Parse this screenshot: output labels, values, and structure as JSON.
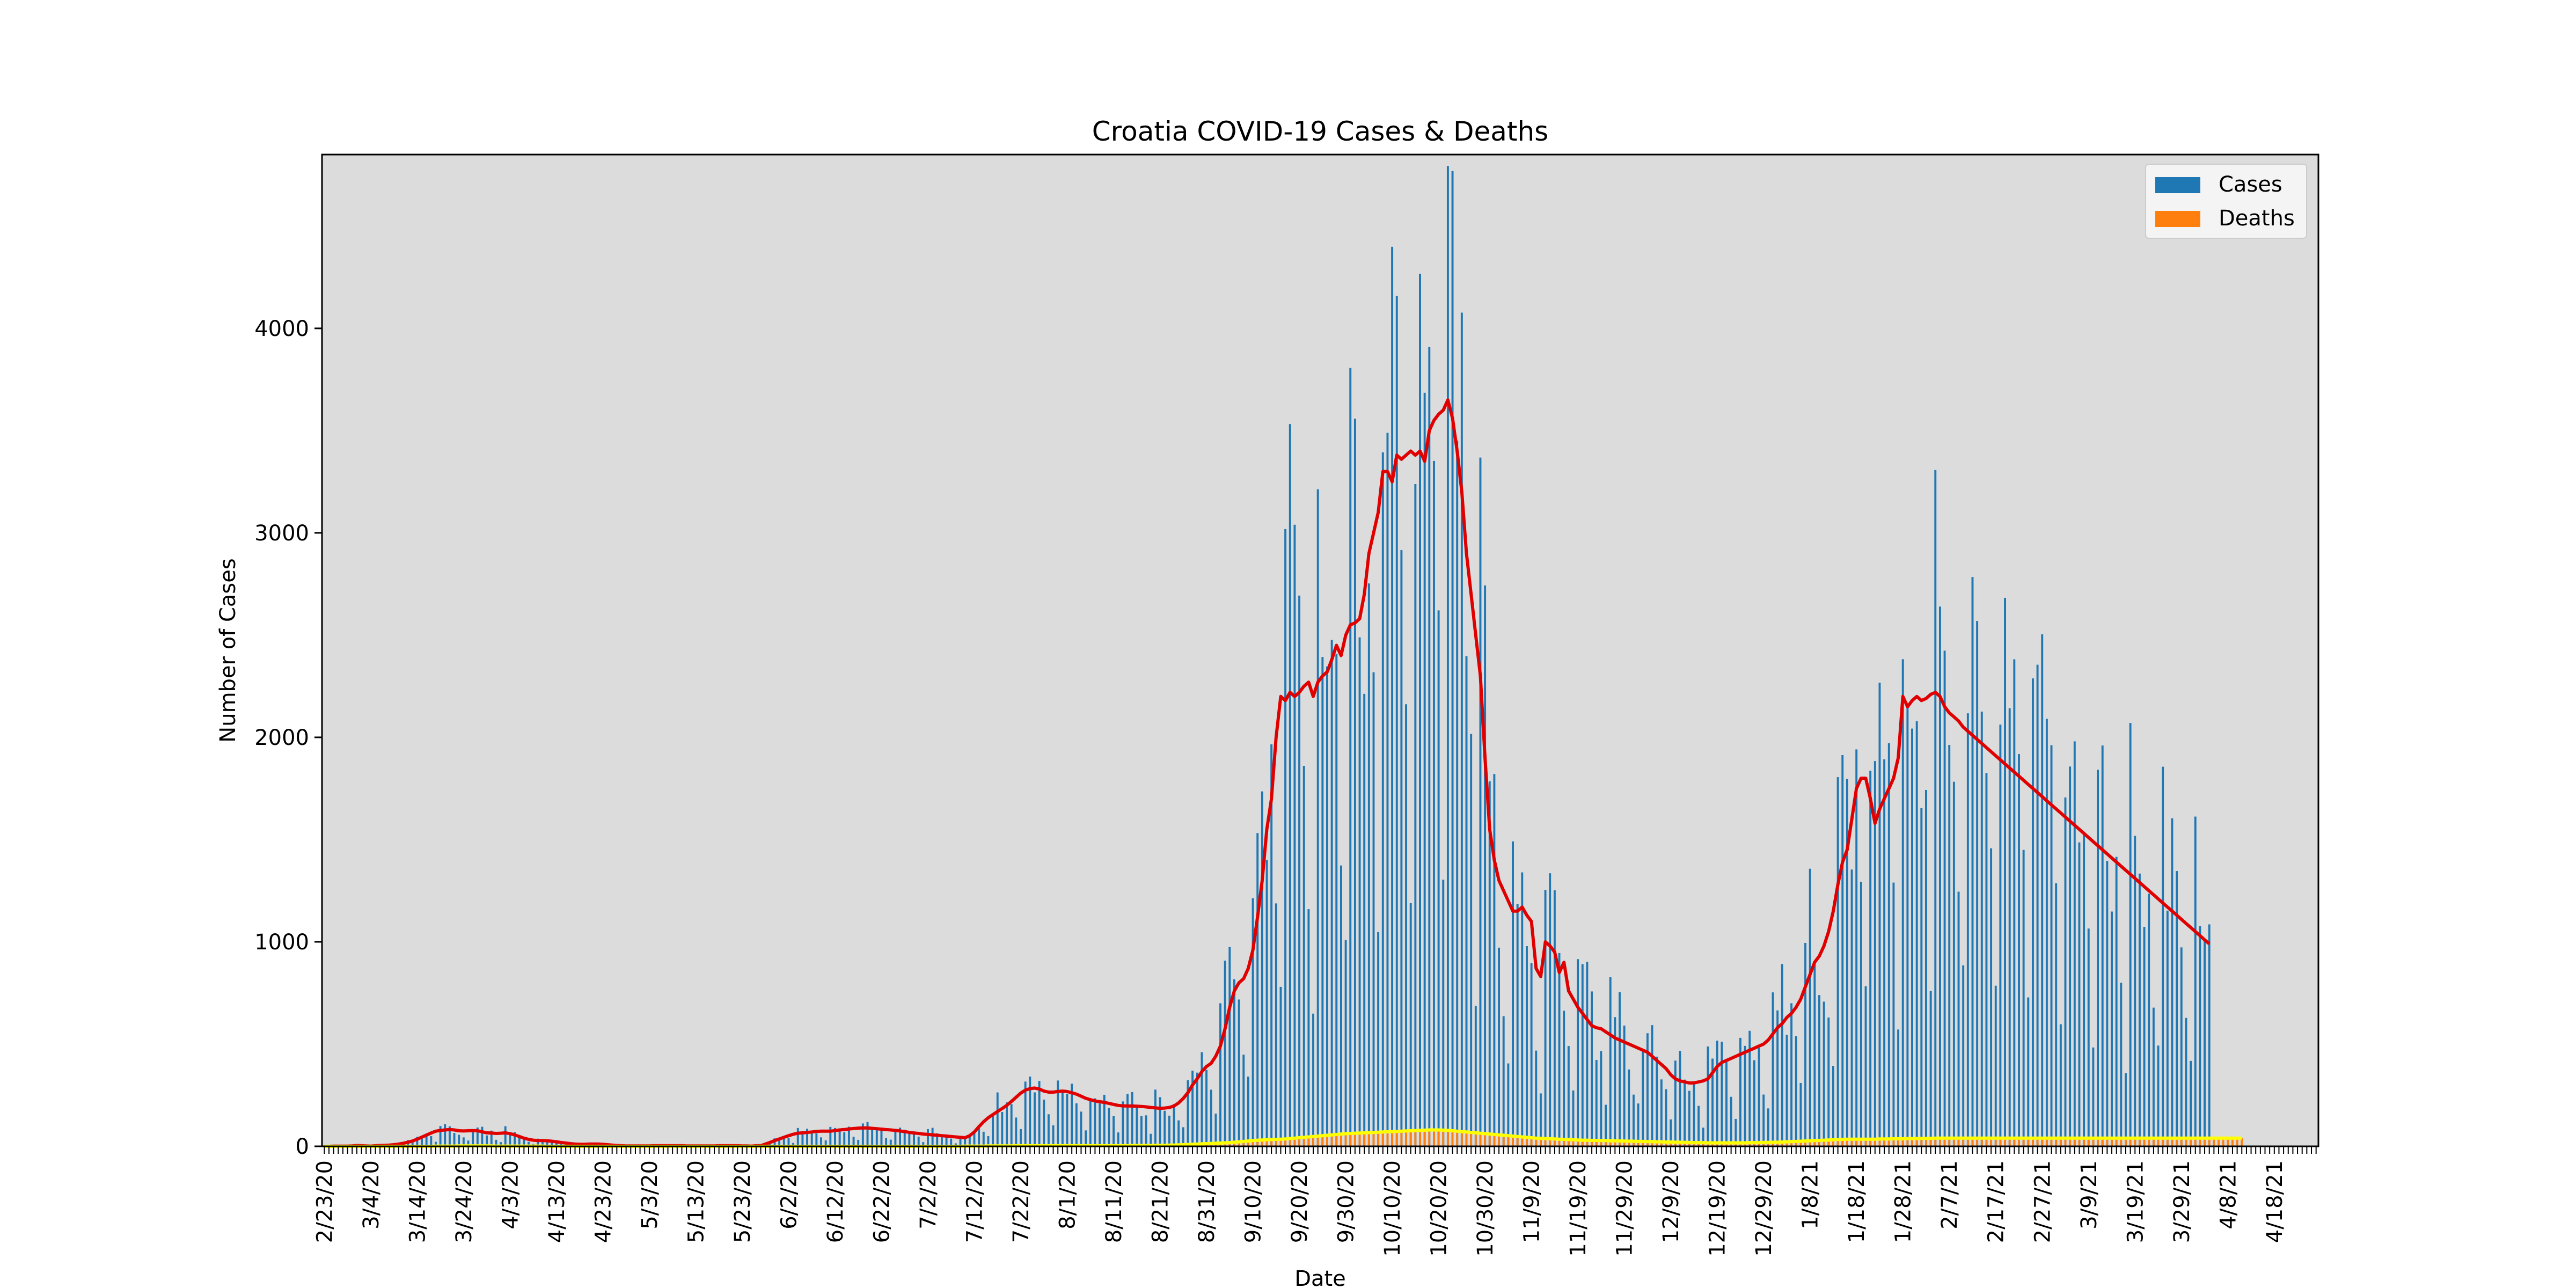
{
  "chart_data": {
    "type": "bar",
    "title": "Croatia COVID-19 Cases & Deaths",
    "xlabel": "Date",
    "ylabel": "Number of Cases",
    "ylim": [
      0,
      4850
    ],
    "yticks": [
      0,
      1000,
      2000,
      3000,
      4000
    ],
    "grid": false,
    "background": "#dcdcdc",
    "legend_position": "top-right",
    "x_tick_labels": [
      "2/23/20",
      "3/4/20",
      "3/14/20",
      "3/24/20",
      "4/3/20",
      "4/13/20",
      "4/23/20",
      "5/3/20",
      "5/13/20",
      "5/23/20",
      "6/2/20",
      "6/12/20",
      "6/22/20",
      "7/2/20",
      "7/12/20",
      "7/22/20",
      "8/1/20",
      "8/11/20",
      "8/21/20",
      "8/31/20",
      "9/10/20",
      "9/20/20",
      "9/30/20",
      "10/10/20",
      "10/20/20",
      "10/30/20",
      "11/9/20",
      "11/19/20",
      "11/29/20",
      "12/9/20",
      "12/19/20",
      "12/29/20",
      "1/8/21",
      "1/18/21",
      "1/28/21",
      "2/7/21",
      "2/17/21",
      "2/27/21",
      "3/9/21",
      "3/19/21",
      "3/29/21",
      "4/8/21",
      "4/18/21"
    ],
    "x_tick_every_days": 10,
    "n_days": 430,
    "series": [
      {
        "name": "Cases",
        "kind": "bar",
        "color": "#1f77b4",
        "values": [
          0,
          0,
          1,
          1,
          1,
          1,
          2,
          4,
          3,
          2,
          1,
          3,
          4,
          5,
          6,
          8,
          11,
          15,
          20,
          26,
          35,
          45,
          55,
          65,
          74,
          78,
          80,
          82,
          80,
          76,
          75,
          76,
          77,
          76,
          71,
          66,
          65,
          63,
          64,
          66,
          62,
          56,
          48,
          40,
          34,
          30,
          28,
          28,
          27,
          25,
          22,
          19,
          16,
          13,
          11,
          10,
          10,
          11,
          11,
          11,
          10,
          8,
          6,
          4,
          3,
          2,
          2,
          2,
          2,
          2,
          2,
          3,
          3,
          3,
          3,
          3,
          3,
          3,
          2,
          2,
          2,
          2,
          2,
          2,
          2,
          3,
          3,
          3,
          3,
          3,
          2,
          2,
          1,
          3,
          3,
          11,
          19,
          28,
          36,
          44,
          52,
          59,
          64,
          66,
          68,
          70,
          73,
          74,
          74,
          74,
          77,
          80,
          82,
          85,
          87,
          89,
          90,
          90,
          88,
          86,
          84,
          82,
          80,
          78,
          75,
          72,
          68,
          65,
          63,
          60,
          58,
          56,
          54,
          52,
          50,
          48,
          46,
          44,
          42,
          52,
          70,
          96,
          120,
          140,
          155,
          170,
          185,
          200,
          220,
          240,
          260,
          275,
          282,
          285,
          280,
          270,
          265,
          265,
          268,
          270,
          268,
          262,
          255,
          245,
          235,
          228,
          222,
          218,
          215,
          210,
          205,
          200,
          198,
          197,
          197,
          196,
          195,
          193,
          190,
          188,
          186,
          187,
          190,
          197,
          212,
          234,
          262,
          300,
          330,
          365,
          390,
          406,
          440,
          490,
          575,
          680,
          760,
          800,
          820,
          870,
          960,
          1120,
          1300,
          1550,
          1700,
          2000,
          2200,
          2180,
          2220,
          2200,
          2220,
          2250,
          2270,
          2200,
          2270,
          2300,
          2320,
          2380,
          2450,
          2400,
          2500,
          2550,
          2560,
          2580,
          2700,
          2900,
          3000,
          3100,
          3300,
          3300,
          3250,
          3380,
          3360,
          3380,
          3400,
          3380,
          3400,
          3350,
          3500,
          3550,
          3580,
          3600,
          3650,
          3560,
          3400,
          3200,
          2900,
          2700,
          2500,
          2300,
          1900,
          1550,
          1400,
          1300,
          1250,
          1200,
          1150,
          1150,
          1170,
          1130,
          1100,
          870,
          830,
          1000,
          980,
          950,
          850,
          900,
          760,
          720,
          680,
          650,
          620,
          590,
          580,
          575,
          560,
          545,
          530,
          520,
          510,
          500,
          490,
          480,
          470,
          460,
          440,
          420,
          400,
          380,
          350,
          330,
          320,
          315,
          310,
          310,
          315,
          320,
          330,
          360,
          390,
          410,
          420,
          430,
          440,
          450,
          460,
          470,
          480,
          490,
          500,
          520,
          550,
          580,
          600,
          630,
          650,
          680,
          720,
          780,
          840,
          900,
          930,
          980,
          1050,
          1150,
          1280,
          1390,
          1450,
          1600,
          1750,
          1800,
          1800,
          1700,
          1580,
          1650,
          1700,
          1750,
          1800,
          1900,
          2200,
          2150,
          2180,
          2200,
          2180,
          2190,
          2210,
          2220,
          2200,
          2150,
          2120,
          2100,
          2080,
          2050,
          2030,
          2010,
          1990,
          1970,
          1950,
          1930,
          1910,
          1890,
          1870,
          1850,
          1830,
          1810,
          1790,
          1770,
          1750,
          1730,
          1710,
          1690,
          1670,
          1650,
          1630,
          1610,
          1590,
          1570,
          1550,
          1530,
          1510,
          1490,
          1470,
          1450,
          1430,
          1410,
          1390,
          1370,
          1350,
          1330,
          1310,
          1290,
          1270,
          1250,
          1230,
          1210,
          1190,
          1170,
          1150,
          1130,
          1110,
          1090,
          1070,
          1050,
          1030,
          1010,
          990
        ]
      },
      {
        "name": "Deaths",
        "kind": "bar",
        "color": "#ff7f0e",
        "values": [
          0,
          0,
          0,
          0,
          0,
          0,
          0,
          0,
          0,
          0,
          0,
          0,
          0,
          0,
          0,
          0,
          0,
          0,
          0,
          0,
          0,
          0,
          0,
          0,
          1,
          1,
          1,
          1,
          1,
          2,
          2,
          2,
          2,
          2,
          2,
          2,
          2,
          1,
          1,
          1,
          1,
          1,
          1,
          1,
          1,
          1,
          1,
          1,
          0,
          0,
          0,
          0,
          0,
          0,
          0,
          0,
          0,
          0,
          0,
          0,
          0,
          0,
          0,
          0,
          0,
          0,
          0,
          0,
          0,
          0,
          0,
          0,
          0,
          0,
          0,
          0,
          0,
          0,
          0,
          0,
          0,
          0,
          0,
          0,
          0,
          0,
          0,
          0,
          0,
          0,
          0,
          0,
          0,
          0,
          0,
          0,
          0,
          0,
          0,
          0,
          0,
          0,
          0,
          0,
          0,
          0,
          0,
          0,
          0,
          0,
          0,
          0,
          0,
          0,
          0,
          0,
          0,
          0,
          0,
          0,
          0,
          0,
          0,
          0,
          0,
          0,
          0,
          0,
          0,
          0,
          0,
          0,
          0,
          0,
          0,
          0,
          0,
          0,
          1,
          1,
          1,
          1,
          1,
          2,
          2,
          2,
          2,
          2,
          2,
          3,
          3,
          3,
          3,
          3,
          3,
          3,
          3,
          3,
          3,
          3,
          3,
          3,
          3,
          3,
          3,
          3,
          3,
          3,
          3,
          3,
          3,
          3,
          3,
          3,
          4,
          4,
          4,
          4,
          4,
          5,
          5,
          5,
          6,
          6,
          7,
          8,
          9,
          10,
          11,
          12,
          13,
          14,
          15,
          16,
          17,
          18,
          20,
          22,
          24,
          26,
          28,
          30,
          31,
          32,
          33,
          34,
          35,
          36,
          38,
          40,
          42,
          44,
          46,
          48,
          50,
          52,
          54,
          56,
          58,
          60,
          62,
          63,
          64,
          65,
          66,
          67,
          68,
          69,
          70,
          71,
          72,
          73,
          74,
          75,
          76,
          77,
          78,
          79,
          80,
          80,
          80,
          79,
          78,
          76,
          74,
          72,
          70,
          68,
          66,
          64,
          62,
          60,
          58,
          56,
          54,
          52,
          50,
          48,
          46,
          44,
          42,
          40,
          39,
          38,
          37,
          36,
          35,
          34,
          33,
          32,
          31,
          30,
          30,
          29,
          29,
          28,
          28,
          27,
          27,
          26,
          26,
          25,
          25,
          24,
          24,
          23,
          23,
          22,
          22,
          21,
          21,
          20,
          20,
          19,
          19,
          18,
          18,
          18,
          17,
          17,
          17,
          17,
          17,
          17,
          17,
          17,
          17,
          18,
          18,
          18,
          19,
          19,
          20,
          20,
          21,
          22,
          23,
          24,
          25,
          26,
          27,
          28,
          29,
          30,
          31,
          32,
          33,
          34,
          35,
          35,
          35,
          35,
          35,
          35,
          35,
          36,
          36,
          36,
          37,
          37,
          37,
          38,
          38,
          38,
          39,
          39,
          39,
          40,
          40,
          40,
          40,
          40,
          40,
          40,
          40,
          40,
          40,
          40,
          40,
          40,
          40,
          40,
          40,
          40,
          40,
          40,
          40,
          40,
          40,
          40,
          40,
          40,
          40,
          40,
          40,
          40,
          40,
          40,
          40,
          40,
          40,
          40,
          40,
          40,
          40,
          40,
          40,
          40,
          40,
          40,
          40,
          40,
          40,
          40,
          40,
          40,
          40,
          40,
          40,
          40,
          40,
          40,
          40,
          40,
          40,
          40,
          40,
          40,
          40,
          40,
          40,
          40,
          40,
          40
        ]
      }
    ]
  }
}
